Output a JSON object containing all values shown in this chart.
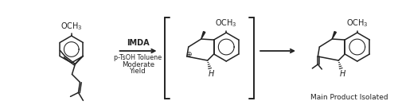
{
  "bg_color": "#ffffff",
  "text_color": "#222222",
  "arrow_color": "#222222",
  "line_color": "#222222",
  "line_width": 1.1,
  "reaction_label1": "IMDA",
  "reaction_label2": "p-TsOH Toluene",
  "reaction_label3": "Moderate",
  "reaction_label4": "Yield",
  "bracket_label": "Main Product Isolated",
  "fig_width": 5.0,
  "fig_height": 1.32,
  "dpi": 100
}
